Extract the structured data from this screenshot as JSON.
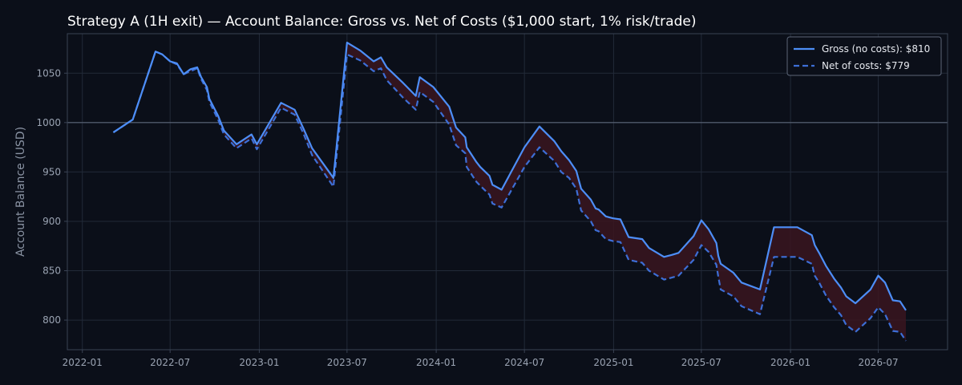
{
  "chart_data": {
    "type": "line",
    "title": "Strategy A (1H exit) — Account Balance: Gross vs. Net of Costs ($1,000 start, 1% risk/trade)",
    "xlabel": "",
    "ylabel": "Account Balance (USD)",
    "xlim": [
      "2021-12-01",
      "2026-11-21"
    ],
    "ylim": [
      770,
      1090
    ],
    "xticks": [
      "2022-01",
      "2022-07",
      "2023-01",
      "2023-07",
      "2024-01",
      "2024-07",
      "2025-01",
      "2025-07",
      "2026-01",
      "2026-07"
    ],
    "yticks": [
      800,
      850,
      900,
      950,
      1000,
      1050
    ],
    "reference_line": 1000,
    "grid": true,
    "legend_position": "top-right",
    "colors": {
      "background": "#0b0f19",
      "gross": "#4d8ef7",
      "net": "#3d6ed6",
      "fill": "#3a1520",
      "reference": "#5c6678",
      "grid": "#222a38",
      "axis": "#3a4354"
    },
    "series": [
      {
        "name": "Gross (no costs): $810",
        "style": "solid",
        "points": [
          [
            "2022-03-06",
            990
          ],
          [
            "2022-04-15",
            1003
          ],
          [
            "2022-06-01",
            1072
          ],
          [
            "2022-06-15",
            1069
          ],
          [
            "2022-07-01",
            1062
          ],
          [
            "2022-07-15",
            1060
          ],
          [
            "2022-07-29",
            1049
          ],
          [
            "2022-08-12",
            1054
          ],
          [
            "2022-08-26",
            1056
          ],
          [
            "2022-09-03",
            1046
          ],
          [
            "2022-09-15",
            1036
          ],
          [
            "2022-09-20",
            1024
          ],
          [
            "2022-10-08",
            1007
          ],
          [
            "2022-10-20",
            992
          ],
          [
            "2022-11-15",
            978
          ],
          [
            "2022-12-16",
            988
          ],
          [
            "2022-12-27",
            978
          ],
          [
            "2023-02-15",
            1020
          ],
          [
            "2023-03-15",
            1013
          ],
          [
            "2023-04-02",
            994
          ],
          [
            "2023-04-20",
            974
          ],
          [
            "2023-06-03",
            944
          ],
          [
            "2023-07-01",
            1081
          ],
          [
            "2023-07-28",
            1073
          ],
          [
            "2023-08-25",
            1062
          ],
          [
            "2023-09-09",
            1066
          ],
          [
            "2023-09-21",
            1056
          ],
          [
            "2023-10-25",
            1040
          ],
          [
            "2023-11-20",
            1027
          ],
          [
            "2023-11-28",
            1046
          ],
          [
            "2023-12-26",
            1036
          ],
          [
            "2024-01-28",
            1016
          ],
          [
            "2024-02-11",
            995
          ],
          [
            "2024-03-01",
            985
          ],
          [
            "2024-03-04",
            975
          ],
          [
            "2024-03-24",
            960
          ],
          [
            "2024-04-01",
            955
          ],
          [
            "2024-04-20",
            946
          ],
          [
            "2024-04-26",
            937
          ],
          [
            "2024-05-15",
            932
          ],
          [
            "2024-07-01",
            975
          ],
          [
            "2024-08-01",
            996
          ],
          [
            "2024-09-01",
            981
          ],
          [
            "2024-09-15",
            971
          ],
          [
            "2024-10-01",
            962
          ],
          [
            "2024-10-16",
            951
          ],
          [
            "2024-10-26",
            933
          ],
          [
            "2024-11-15",
            922
          ],
          [
            "2024-11-25",
            913
          ],
          [
            "2024-12-01",
            912
          ],
          [
            "2024-12-16",
            905
          ],
          [
            "2024-12-31",
            903
          ],
          [
            "2025-01-15",
            902
          ],
          [
            "2025-02-01",
            884
          ],
          [
            "2025-03-01",
            882
          ],
          [
            "2025-03-15",
            873
          ],
          [
            "2025-04-15",
            864
          ],
          [
            "2025-05-01",
            866
          ],
          [
            "2025-05-15",
            868
          ],
          [
            "2025-06-15",
            885
          ],
          [
            "2025-07-01",
            901
          ],
          [
            "2025-07-16",
            892
          ],
          [
            "2025-08-01",
            878
          ],
          [
            "2025-08-05",
            865
          ],
          [
            "2025-08-10",
            857
          ],
          [
            "2025-09-05",
            848
          ],
          [
            "2025-09-22",
            838
          ],
          [
            "2025-10-30",
            831
          ],
          [
            "2025-11-28",
            894
          ],
          [
            "2026-01-15",
            894
          ],
          [
            "2026-02-14",
            886
          ],
          [
            "2026-02-20",
            876
          ],
          [
            "2026-03-01",
            868
          ],
          [
            "2026-03-15",
            855
          ],
          [
            "2026-04-01",
            842
          ],
          [
            "2026-04-15",
            833
          ],
          [
            "2026-04-26",
            824
          ],
          [
            "2026-05-15",
            817
          ],
          [
            "2026-06-15",
            831
          ],
          [
            "2026-07-01",
            845
          ],
          [
            "2026-07-15",
            838
          ],
          [
            "2026-07-31",
            820
          ],
          [
            "2026-08-15",
            819
          ],
          [
            "2026-08-27",
            810
          ]
        ]
      },
      {
        "name": "Net of costs: $779",
        "style": "dashed",
        "points": [
          [
            "2022-03-06",
            990
          ],
          [
            "2022-04-15",
            1003
          ],
          [
            "2022-06-01",
            1072
          ],
          [
            "2022-06-15",
            1069
          ],
          [
            "2022-07-01",
            1062
          ],
          [
            "2022-07-15",
            1059
          ],
          [
            "2022-07-29",
            1049
          ],
          [
            "2022-08-12",
            1052
          ],
          [
            "2022-08-26",
            1055
          ],
          [
            "2022-09-03",
            1044
          ],
          [
            "2022-09-15",
            1033
          ],
          [
            "2022-09-20",
            1021
          ],
          [
            "2022-10-08",
            1003
          ],
          [
            "2022-10-20",
            988
          ],
          [
            "2022-11-15",
            974
          ],
          [
            "2022-12-16",
            984
          ],
          [
            "2022-12-27",
            973
          ],
          [
            "2023-02-15",
            1015
          ],
          [
            "2023-03-15",
            1008
          ],
          [
            "2023-04-02",
            989
          ],
          [
            "2023-04-20",
            967
          ],
          [
            "2023-06-03",
            935
          ],
          [
            "2023-07-01",
            1069
          ],
          [
            "2023-07-28",
            1063
          ],
          [
            "2023-08-25",
            1052
          ],
          [
            "2023-09-09",
            1055
          ],
          [
            "2023-09-21",
            1043
          ],
          [
            "2023-10-25",
            1025
          ],
          [
            "2023-11-20",
            1013
          ],
          [
            "2023-11-28",
            1031
          ],
          [
            "2023-12-26",
            1021
          ],
          [
            "2024-01-28",
            998
          ],
          [
            "2024-02-11",
            977
          ],
          [
            "2024-03-01",
            969
          ],
          [
            "2024-03-04",
            955
          ],
          [
            "2024-03-24",
            940
          ],
          [
            "2024-04-01",
            936
          ],
          [
            "2024-04-20",
            927
          ],
          [
            "2024-04-26",
            918
          ],
          [
            "2024-05-15",
            914
          ],
          [
            "2024-07-01",
            955
          ],
          [
            "2024-08-01",
            975
          ],
          [
            "2024-09-01",
            961
          ],
          [
            "2024-09-15",
            950
          ],
          [
            "2024-10-01",
            944
          ],
          [
            "2024-10-16",
            933
          ],
          [
            "2024-10-26",
            911
          ],
          [
            "2024-11-15",
            900
          ],
          [
            "2024-11-25",
            891
          ],
          [
            "2024-12-01",
            890
          ],
          [
            "2024-12-16",
            882
          ],
          [
            "2024-12-31",
            880
          ],
          [
            "2025-01-15",
            879
          ],
          [
            "2025-02-01",
            861
          ],
          [
            "2025-03-01",
            858
          ],
          [
            "2025-03-15",
            850
          ],
          [
            "2025-04-15",
            841
          ],
          [
            "2025-05-01",
            843
          ],
          [
            "2025-05-15",
            845
          ],
          [
            "2025-06-15",
            861
          ],
          [
            "2025-07-01",
            876
          ],
          [
            "2025-07-16",
            869
          ],
          [
            "2025-08-01",
            856
          ],
          [
            "2025-08-05",
            844
          ],
          [
            "2025-08-10",
            831
          ],
          [
            "2025-09-05",
            824
          ],
          [
            "2025-09-22",
            814
          ],
          [
            "2025-10-30",
            806
          ],
          [
            "2025-11-28",
            864
          ],
          [
            "2026-01-15",
            864
          ],
          [
            "2026-02-14",
            857
          ],
          [
            "2026-02-20",
            845
          ],
          [
            "2026-03-01",
            838
          ],
          [
            "2026-03-15",
            825
          ],
          [
            "2026-04-01",
            813
          ],
          [
            "2026-04-15",
            805
          ],
          [
            "2026-04-26",
            795
          ],
          [
            "2026-05-15",
            788
          ],
          [
            "2026-06-15",
            802
          ],
          [
            "2026-07-01",
            813
          ],
          [
            "2026-07-15",
            806
          ],
          [
            "2026-07-31",
            789
          ],
          [
            "2026-08-15",
            788
          ],
          [
            "2026-08-27",
            779
          ]
        ]
      }
    ]
  }
}
